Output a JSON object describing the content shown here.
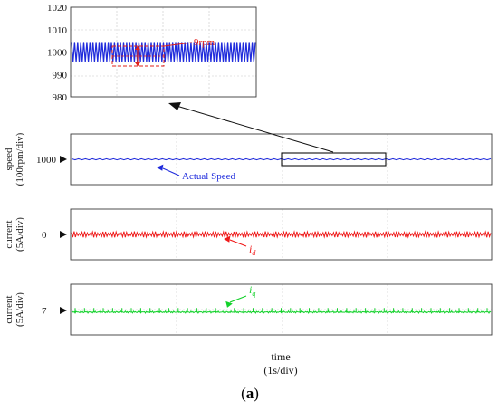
{
  "caption": {
    "prefix": "(",
    "letter": "a",
    "suffix": ")"
  },
  "x_label": {
    "line1": "time",
    "line2": "(1s/div)"
  },
  "colors": {
    "speed": "#1f2bdc",
    "id": "#f01a1a",
    "iq": "#12d12a",
    "annotation": "#e0201a",
    "grid": "#c8c8c8",
    "frame": "#3a3a3a",
    "arrow": "#111111"
  },
  "chart_data": [
    {
      "name": "zoom",
      "type": "line",
      "series_key": "speed",
      "ylim": [
        980,
        1020
      ],
      "y_ticks": [
        "1020",
        "1010",
        "1000",
        "990",
        "980"
      ],
      "y_tick_values": [
        1020,
        1010,
        1000,
        990,
        980
      ],
      "signal": {
        "mean": 1000,
        "ripple_pp": 9,
        "cycles": 60
      },
      "annotation": "9rpm",
      "grid": true
    },
    {
      "name": "speed",
      "type": "line",
      "series_key": "speed",
      "ylabel": {
        "line1": "speed",
        "line2": "(100rpm/div)"
      },
      "marker": "1000",
      "ylim": [
        800,
        1200
      ],
      "signal": {
        "mean": 1000,
        "ripple_pp": 9,
        "cycles": 60
      },
      "legend": "Actual Speed",
      "grid": true
    },
    {
      "name": "id",
      "type": "line",
      "series_key": "id",
      "ylabel": {
        "line1": "current",
        "line2": "(5A/div)"
      },
      "marker": "0",
      "ylim": [
        -10,
        10
      ],
      "signal": {
        "mean": 0,
        "ripple_pp": 1.6,
        "cycles": 160
      },
      "legend_main": "i",
      "legend_sub": "d",
      "grid": true
    },
    {
      "name": "iq",
      "type": "line",
      "series_key": "iq",
      "ylabel": {
        "line1": "current",
        "line2": "(5A/div)"
      },
      "marker": "7",
      "ylim": [
        -3,
        17
      ],
      "signal": {
        "mean": 6.8,
        "ripple_pp": 1.6,
        "spike_count": 45
      },
      "legend_main": "i",
      "legend_sub": "q",
      "grid": true
    }
  ]
}
